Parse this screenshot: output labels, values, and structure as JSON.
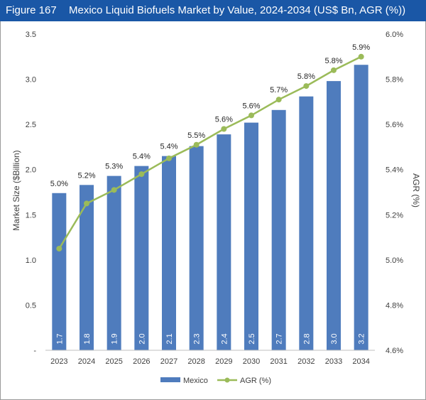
{
  "header": {
    "figure_label": "Figure 167",
    "title": "Mexico Liquid Biofuels Market by Value, 2024-2034 (US$ Bn, AGR (%))"
  },
  "chart_data": {
    "type": "bar",
    "categories": [
      "2023",
      "2024",
      "2025",
      "2026",
      "2027",
      "2028",
      "2029",
      "2030",
      "2031",
      "2032",
      "2033",
      "2034"
    ],
    "series": [
      {
        "name": "Mexico",
        "type": "bar",
        "axis": "left",
        "color": "#4f7cbd",
        "values": [
          1.74,
          1.83,
          1.93,
          2.04,
          2.15,
          2.26,
          2.39,
          2.52,
          2.66,
          2.81,
          2.98,
          3.16
        ],
        "value_labels": [
          "1.7",
          "1.8",
          "1.9",
          "2.0",
          "2.1",
          "2.3",
          "2.4",
          "2.5",
          "2.7",
          "2.8",
          "3.0",
          "3.2"
        ]
      },
      {
        "name": "AGR (%)",
        "type": "line",
        "axis": "right",
        "color": "#9bbb59",
        "values": [
          5.05,
          5.25,
          5.31,
          5.38,
          5.45,
          5.51,
          5.58,
          5.64,
          5.71,
          5.77,
          5.84,
          5.9
        ],
        "value_labels": [
          "5.0%",
          "5.2%",
          "5.3%",
          "5.4%",
          "5.4%",
          "5.5%",
          "5.6%",
          "5.6%",
          "5.7%",
          "5.8%",
          "5.8%",
          "5.9%"
        ]
      }
    ],
    "ylabel": "Market Size ($Billion)",
    "ylabel_right": "AGR (%)",
    "ylim": [
      0,
      3.5
    ],
    "ylim_right": [
      4.6,
      6.0
    ],
    "y_ticks": [
      "-",
      "0.5",
      "1.0",
      "1.5",
      "2.0",
      "2.5",
      "3.0",
      "3.5"
    ],
    "y_right_ticks": [
      "4.6%",
      "4.8%",
      "5.0%",
      "5.2%",
      "5.4%",
      "5.6%",
      "5.8%",
      "6.0%"
    ],
    "grid": false,
    "legend": "bottom"
  }
}
